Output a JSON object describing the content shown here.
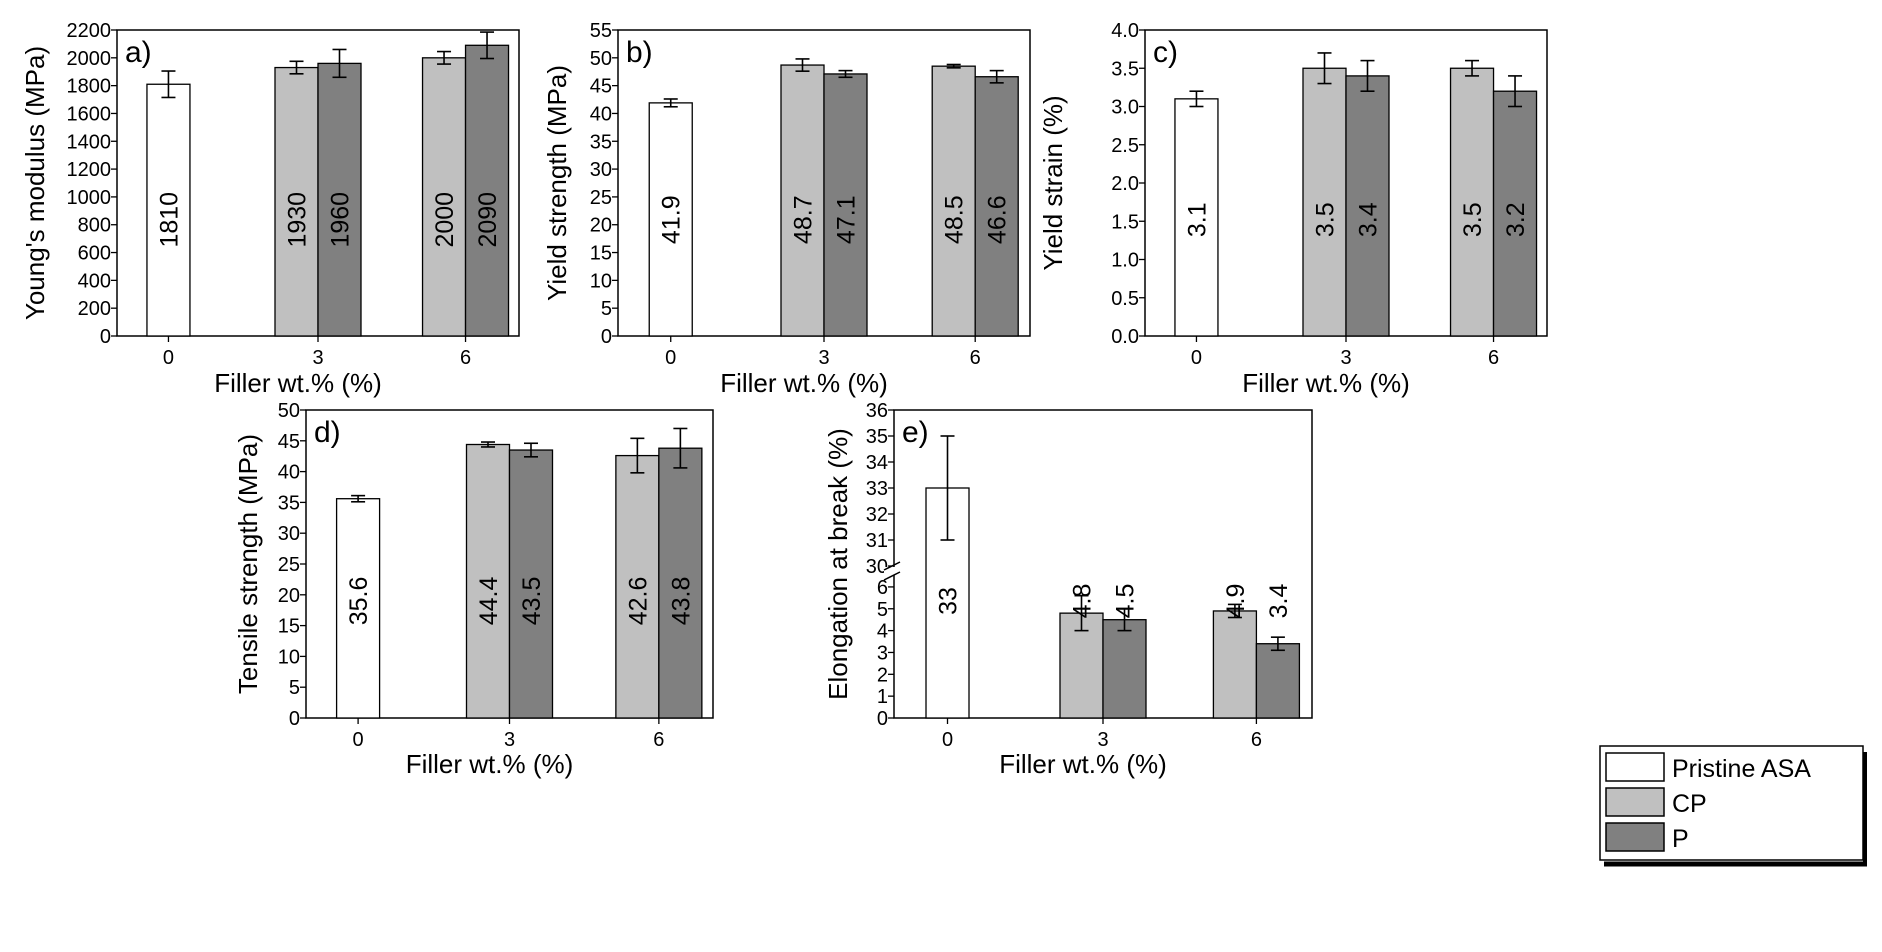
{
  "legend": {
    "entries": [
      {
        "name": "Pristine ASA",
        "color": "#ffffff"
      },
      {
        "name": "CP",
        "color": "#c0c0c0"
      },
      {
        "name": "P",
        "color": "#808080"
      }
    ],
    "placement": "bottom-right"
  },
  "chart_data": [
    {
      "panel": "a)",
      "type": "bar",
      "xlabel": "Filler wt.% (%)",
      "ylabel": "Young's modulus (MPa)",
      "categories": [
        "0",
        "3",
        "6"
      ],
      "ylim": [
        0,
        2200
      ],
      "yticks": [
        0,
        200,
        400,
        600,
        800,
        1000,
        1200,
        1400,
        1600,
        1800,
        2000,
        2200
      ],
      "ytick_labels": [
        "0",
        "200",
        "400",
        "600",
        "800",
        "1000",
        "1200",
        "1400",
        "1600",
        "1800",
        "2000",
        "2200"
      ],
      "series": [
        {
          "name": "Pristine ASA",
          "values": [
            1810,
            null,
            null
          ],
          "errors": [
            95,
            null,
            null
          ],
          "labels": [
            "1810",
            "",
            ""
          ]
        },
        {
          "name": "CP",
          "values": [
            null,
            1930,
            2000
          ],
          "errors": [
            null,
            45,
            45
          ],
          "labels": [
            "",
            "1930",
            "2000"
          ]
        },
        {
          "name": "P",
          "values": [
            null,
            1960,
            2090
          ],
          "errors": [
            null,
            100,
            95
          ],
          "labels": [
            "",
            "1960",
            "2090"
          ]
        }
      ]
    },
    {
      "panel": "b)",
      "type": "bar",
      "xlabel": "Filler wt.% (%)",
      "ylabel": "Yield strength (MPa)",
      "categories": [
        "0",
        "3",
        "6"
      ],
      "ylim": [
        0,
        55
      ],
      "yticks": [
        0,
        5,
        10,
        15,
        20,
        25,
        30,
        35,
        40,
        45,
        50,
        55
      ],
      "ytick_labels": [
        "0",
        "5",
        "10",
        "15",
        "20",
        "25",
        "30",
        "35",
        "40",
        "45",
        "50",
        "55"
      ],
      "series": [
        {
          "name": "Pristine ASA",
          "values": [
            41.9,
            null,
            null
          ],
          "errors": [
            0.7,
            null,
            null
          ],
          "labels": [
            "41.9",
            "",
            ""
          ]
        },
        {
          "name": "CP",
          "values": [
            null,
            48.7,
            48.5
          ],
          "errors": [
            null,
            1.1,
            0.3
          ],
          "labels": [
            "",
            "48.7",
            "48.5"
          ]
        },
        {
          "name": "P",
          "values": [
            null,
            47.1,
            46.6
          ],
          "errors": [
            null,
            0.6,
            1.1
          ],
          "labels": [
            "",
            "47.1",
            "46.6"
          ]
        }
      ]
    },
    {
      "panel": "c)",
      "type": "bar",
      "xlabel": "Filler wt.% (%)",
      "ylabel": "Yield strain (%)",
      "categories": [
        "0",
        "3",
        "6"
      ],
      "ylim": [
        0,
        4.0
      ],
      "yticks": [
        0,
        0.5,
        1.0,
        1.5,
        2.0,
        2.5,
        3.0,
        3.5,
        4.0
      ],
      "ytick_labels": [
        "0.0",
        "0.5",
        "1.0",
        "1.5",
        "2.0",
        "2.5",
        "3.0",
        "3.5",
        "4.0"
      ],
      "series": [
        {
          "name": "Pristine ASA",
          "values": [
            3.1,
            null,
            null
          ],
          "errors": [
            0.1,
            null,
            null
          ],
          "labels": [
            "3.1",
            "",
            ""
          ]
        },
        {
          "name": "CP",
          "values": [
            null,
            3.5,
            3.5
          ],
          "errors": [
            null,
            0.2,
            0.1
          ],
          "labels": [
            "",
            "3.5",
            "3.5"
          ]
        },
        {
          "name": "P",
          "values": [
            null,
            3.4,
            3.2
          ],
          "errors": [
            null,
            0.2,
            0.2
          ],
          "labels": [
            "",
            "3.4",
            "3.2"
          ]
        }
      ]
    },
    {
      "panel": "d)",
      "type": "bar",
      "xlabel": "Filler wt.% (%)",
      "ylabel": "Tensile strength (MPa)",
      "categories": [
        "0",
        "3",
        "6"
      ],
      "ylim": [
        0,
        50
      ],
      "yticks": [
        0,
        5,
        10,
        15,
        20,
        25,
        30,
        35,
        40,
        45,
        50
      ],
      "ytick_labels": [
        "0",
        "5",
        "10",
        "15",
        "20",
        "25",
        "30",
        "35",
        "40",
        "45",
        "50"
      ],
      "series": [
        {
          "name": "Pristine ASA",
          "values": [
            35.6,
            null,
            null
          ],
          "errors": [
            0.5,
            null,
            null
          ],
          "labels": [
            "35.6",
            "",
            ""
          ]
        },
        {
          "name": "CP",
          "values": [
            null,
            44.4,
            42.6
          ],
          "errors": [
            null,
            0.4,
            2.8
          ],
          "labels": [
            "",
            "44.4",
            "42.6"
          ]
        },
        {
          "name": "P",
          "values": [
            null,
            43.5,
            43.8
          ],
          "errors": [
            null,
            1.1,
            3.2
          ],
          "labels": [
            "",
            "43.5",
            "43.8"
          ]
        }
      ]
    },
    {
      "panel": "e)",
      "type": "bar",
      "broken_axis": true,
      "xlabel": "Filler wt.% (%)",
      "ylabel": "Elongation at break (%)",
      "categories": [
        "0",
        "3",
        "6"
      ],
      "lower_range": [
        0,
        6.5
      ],
      "upper_range": [
        30,
        36
      ],
      "yticks": [
        0,
        1,
        2,
        3,
        4,
        5,
        6,
        30,
        31,
        32,
        33,
        34,
        35,
        36
      ],
      "ytick_labels": [
        "0",
        "1",
        "2",
        "3",
        "4",
        "5",
        "6",
        "30",
        "31",
        "32",
        "33",
        "34",
        "35",
        "36"
      ],
      "series": [
        {
          "name": "Pristine ASA",
          "values": [
            33,
            null,
            null
          ],
          "errors": [
            2,
            null,
            null
          ],
          "labels": [
            "33",
            "",
            ""
          ]
        },
        {
          "name": "CP",
          "values": [
            null,
            4.8,
            4.9
          ],
          "errors": [
            null,
            0.8,
            0.3
          ],
          "labels": [
            "",
            "4.8",
            "4.9"
          ]
        },
        {
          "name": "P",
          "values": [
            null,
            4.5,
            3.4
          ],
          "errors": [
            null,
            0.5,
            0.3
          ],
          "labels": [
            "",
            "4.5",
            "3.4"
          ]
        }
      ]
    }
  ]
}
